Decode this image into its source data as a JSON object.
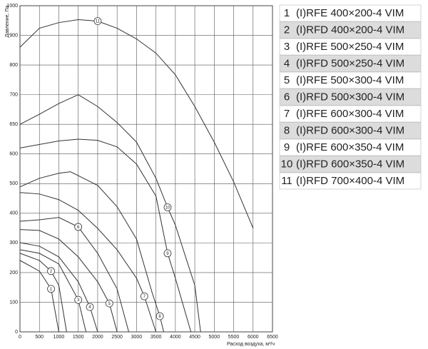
{
  "chart_data": {
    "type": "line",
    "y_label": "Давление, Па",
    "x_label": "Расход воздуха, м³/ч",
    "xlim": [
      0,
      6500
    ],
    "xticks": [
      0,
      500,
      1000,
      1500,
      2000,
      2500,
      3000,
      3500,
      4000,
      4500,
      5000,
      5500,
      6000,
      6500
    ],
    "ylim": [
      0,
      1000
    ],
    "yticks": [
      0,
      100,
      200,
      300,
      400,
      500,
      600,
      650,
      700,
      800,
      900,
      1000
    ],
    "grid": true,
    "color": "#333333",
    "series": [
      {
        "label": "1",
        "name": "(I)RFE 400×200-4 VIM",
        "x": [
          0,
          500,
          800,
          1000
        ],
        "values": [
          241,
          205,
          145,
          0
        ]
      },
      {
        "label": "2",
        "name": "(I)RFD 400×200-4 VIM",
        "x": [
          0,
          500,
          800,
          1000,
          1200
        ],
        "values": [
          265,
          241,
          205,
          157,
          0
        ]
      },
      {
        "label": "3",
        "name": "(I)RFE 500×250-4 VIM",
        "x": [
          0,
          500,
          1000,
          1500,
          1700
        ],
        "values": [
          277,
          265,
          229,
          108,
          0
        ]
      },
      {
        "label": "4",
        "name": "(I)RFD 500×250-4 VIM",
        "x": [
          0,
          500,
          1000,
          1500,
          1800,
          2000
        ],
        "values": [
          301,
          289,
          253,
          169,
          84,
          0
        ]
      },
      {
        "label": "5",
        "name": "(I)RFE 500×300-4 VIM",
        "x": [
          0,
          500,
          1000,
          1500,
          2000,
          2300,
          2500
        ],
        "values": [
          345,
          342,
          313,
          253,
          169,
          96,
          0
        ]
      },
      {
        "label": "6",
        "name": "(I)RFD 500×300-4 VIM",
        "x": [
          0,
          500,
          1000,
          1500,
          2000,
          2500,
          2800
        ],
        "values": [
          373,
          378,
          386,
          354,
          265,
          145,
          0
        ]
      },
      {
        "label": "7",
        "name": "(I)RFE 600×300-4 VIM",
        "x": [
          0,
          500,
          1000,
          1500,
          2000,
          2500,
          3000,
          3200,
          3500
        ],
        "values": [
          470,
          465,
          446,
          410,
          349,
          277,
          181,
          120,
          0
        ]
      },
      {
        "label": "8",
        "name": "(I)RFD 600×300-4 VIM",
        "x": [
          0,
          500,
          1000,
          1300,
          2000,
          2500,
          3000,
          3400,
          3600,
          3700
        ],
        "values": [
          489,
          518,
          535,
          540,
          494,
          422,
          313,
          133,
          53,
          0
        ]
      },
      {
        "label": "9",
        "name": "(I)RFE 600×350-4 VIM",
        "x": [
          0,
          1000,
          1500,
          2000,
          2500,
          3000,
          3500,
          3800,
          4000,
          4400
        ],
        "values": [
          610,
          622,
          625,
          623,
          612,
          566,
          458,
          265,
          181,
          0
        ]
      },
      {
        "label": "10",
        "name": "(I)RFD 600×350-4 VIM",
        "x": [
          0,
          500,
          1000,
          1500,
          2000,
          2500,
          3000,
          3500,
          3800,
          4000,
          4500,
          4650
        ],
        "values": [
          650,
          667,
          685,
          700,
          680,
          653,
          620,
          518,
          420,
          360,
          157,
          0
        ]
      },
      {
        "label": "11",
        "name": "(I)RFD 700×400-4 VIM",
        "x": [
          0,
          500,
          1000,
          1500,
          2000,
          2500,
          3000,
          3500,
          4000,
          4500,
          5000,
          5500,
          6000
        ],
        "values": [
          860,
          924,
          943,
          953,
          948,
          924,
          888,
          840,
          767,
          680,
          620,
          506,
          350
        ]
      }
    ]
  }
}
